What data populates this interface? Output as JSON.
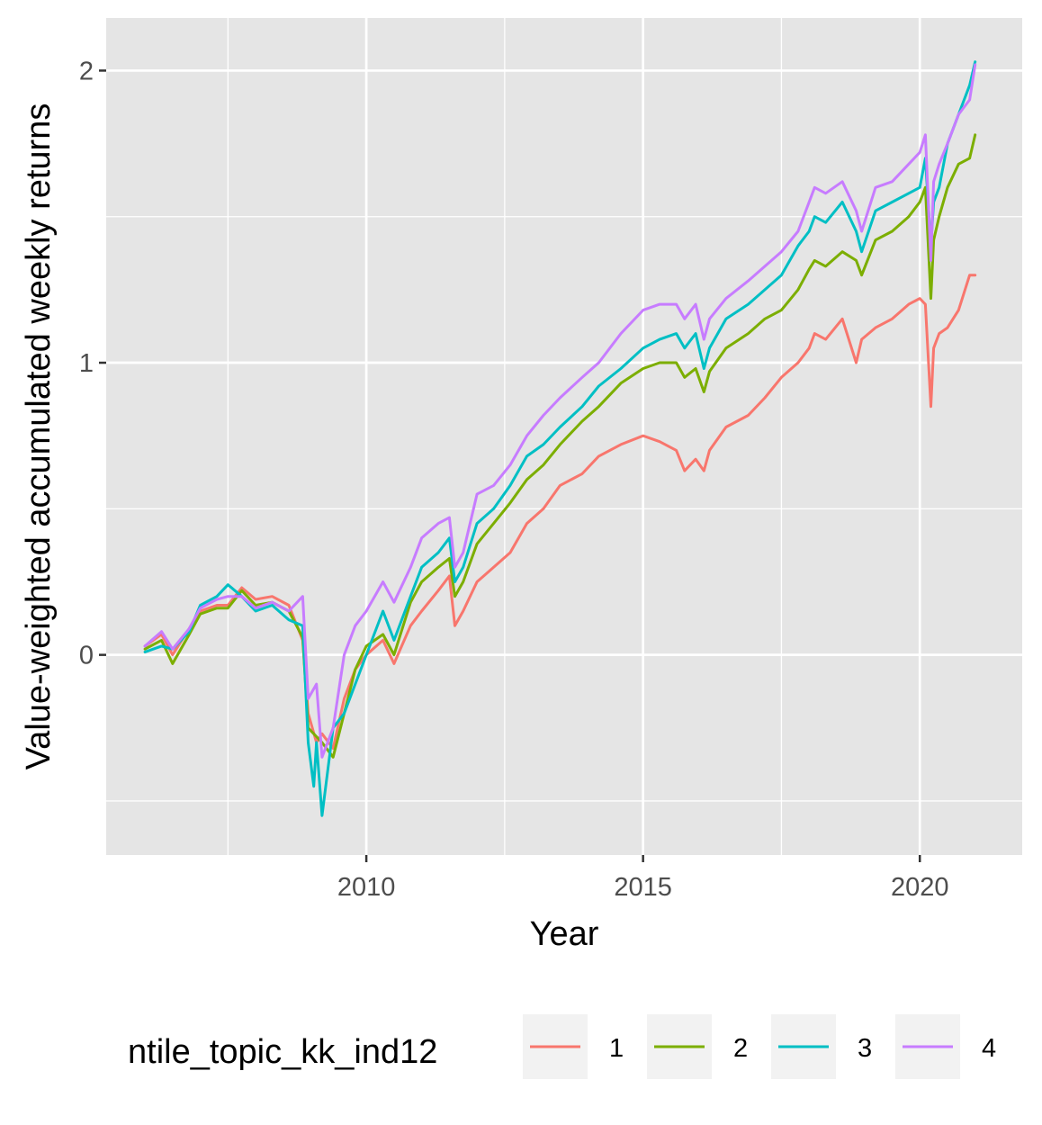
{
  "chart_data": {
    "type": "line",
    "title": "",
    "xlabel": "Year",
    "ylabel": "Value-weighted accumulated weekly returns",
    "xlim": [
      2005.3,
      2021.85
    ],
    "ylim": [
      -0.685,
      2.18
    ],
    "x_ticks": [
      2010,
      2015,
      2020
    ],
    "x_tick_labels": [
      "2010",
      "2015",
      "2020"
    ],
    "x_minor_ticks": [
      2007.5,
      2012.5,
      2017.5
    ],
    "y_ticks": [
      0,
      1,
      2
    ],
    "y_tick_labels": [
      "0",
      "1",
      "2"
    ],
    "y_minor_ticks": [
      -0.5,
      0.5,
      1.5
    ],
    "grid": true,
    "background": "#e5e5e5",
    "legend": {
      "title": "ntile_topic_kk_ind12",
      "position": "bottom",
      "entries": [
        "1",
        "2",
        "3",
        "4"
      ]
    },
    "series": [
      {
        "name": "1",
        "color": "#F8766D",
        "x": [
          2006.0,
          2006.3,
          2006.5,
          2006.8,
          2007.0,
          2007.3,
          2007.5,
          2007.75,
          2008.0,
          2008.3,
          2008.6,
          2008.85,
          2008.95,
          2009.1,
          2009.2,
          2009.4,
          2009.6,
          2009.8,
          2010.0,
          2010.3,
          2010.5,
          2010.8,
          2011.0,
          2011.3,
          2011.5,
          2011.6,
          2011.75,
          2012.0,
          2012.3,
          2012.6,
          2012.9,
          2013.2,
          2013.5,
          2013.9,
          2014.2,
          2014.6,
          2015.0,
          2015.3,
          2015.6,
          2015.75,
          2015.95,
          2016.1,
          2016.2,
          2016.5,
          2016.9,
          2017.2,
          2017.5,
          2017.8,
          2018.0,
          2018.1,
          2018.3,
          2018.6,
          2018.85,
          2018.95,
          2019.2,
          2019.5,
          2019.8,
          2020.0,
          2020.1,
          2020.2,
          2020.25,
          2020.35,
          2020.5,
          2020.7,
          2020.9,
          2021.0
        ],
        "values": [
          0.03,
          0.07,
          0.0,
          0.09,
          0.15,
          0.17,
          0.17,
          0.23,
          0.19,
          0.2,
          0.17,
          0.05,
          -0.2,
          -0.3,
          -0.27,
          -0.32,
          -0.15,
          -0.05,
          0.0,
          0.05,
          -0.03,
          0.1,
          0.15,
          0.22,
          0.27,
          0.1,
          0.15,
          0.25,
          0.3,
          0.35,
          0.45,
          0.5,
          0.58,
          0.62,
          0.68,
          0.72,
          0.75,
          0.73,
          0.7,
          0.63,
          0.67,
          0.63,
          0.7,
          0.78,
          0.82,
          0.88,
          0.95,
          1.0,
          1.05,
          1.1,
          1.08,
          1.15,
          1.0,
          1.08,
          1.12,
          1.15,
          1.2,
          1.22,
          1.2,
          0.85,
          1.05,
          1.1,
          1.12,
          1.18,
          1.3,
          1.3
        ]
      },
      {
        "name": "2",
        "color": "#7CAE00",
        "x": [
          2006.0,
          2006.3,
          2006.5,
          2006.8,
          2007.0,
          2007.3,
          2007.5,
          2007.75,
          2008.0,
          2008.3,
          2008.6,
          2008.85,
          2008.95,
          2009.1,
          2009.2,
          2009.4,
          2009.6,
          2009.8,
          2010.0,
          2010.3,
          2010.5,
          2010.8,
          2011.0,
          2011.3,
          2011.5,
          2011.6,
          2011.75,
          2012.0,
          2012.3,
          2012.6,
          2012.9,
          2013.2,
          2013.5,
          2013.9,
          2014.2,
          2014.6,
          2015.0,
          2015.3,
          2015.6,
          2015.75,
          2015.95,
          2016.1,
          2016.2,
          2016.5,
          2016.9,
          2017.2,
          2017.5,
          2017.8,
          2018.0,
          2018.1,
          2018.3,
          2018.6,
          2018.85,
          2018.95,
          2019.2,
          2019.5,
          2019.8,
          2020.0,
          2020.1,
          2020.2,
          2020.25,
          2020.35,
          2020.5,
          2020.7,
          2020.9,
          2021.0
        ],
        "values": [
          0.02,
          0.05,
          -0.03,
          0.07,
          0.14,
          0.16,
          0.16,
          0.22,
          0.17,
          0.18,
          0.15,
          0.06,
          -0.25,
          -0.28,
          -0.3,
          -0.35,
          -0.2,
          -0.05,
          0.03,
          0.07,
          0.0,
          0.18,
          0.25,
          0.3,
          0.33,
          0.2,
          0.25,
          0.38,
          0.45,
          0.52,
          0.6,
          0.65,
          0.72,
          0.8,
          0.85,
          0.93,
          0.98,
          1.0,
          1.0,
          0.95,
          0.98,
          0.9,
          0.97,
          1.05,
          1.1,
          1.15,
          1.18,
          1.25,
          1.32,
          1.35,
          1.33,
          1.38,
          1.35,
          1.3,
          1.42,
          1.45,
          1.5,
          1.55,
          1.6,
          1.22,
          1.42,
          1.5,
          1.6,
          1.68,
          1.7,
          1.78
        ]
      },
      {
        "name": "3",
        "color": "#00BFC4",
        "x": [
          2006.0,
          2006.3,
          2006.5,
          2006.8,
          2007.0,
          2007.3,
          2007.5,
          2007.75,
          2008.0,
          2008.3,
          2008.6,
          2008.85,
          2008.95,
          2009.05,
          2009.1,
          2009.2,
          2009.4,
          2009.6,
          2009.8,
          2010.0,
          2010.3,
          2010.5,
          2010.8,
          2011.0,
          2011.3,
          2011.5,
          2011.6,
          2011.75,
          2012.0,
          2012.3,
          2012.6,
          2012.9,
          2013.2,
          2013.5,
          2013.9,
          2014.2,
          2014.6,
          2015.0,
          2015.3,
          2015.6,
          2015.75,
          2015.95,
          2016.1,
          2016.2,
          2016.5,
          2016.9,
          2017.2,
          2017.5,
          2017.8,
          2018.0,
          2018.1,
          2018.3,
          2018.6,
          2018.85,
          2018.95,
          2019.2,
          2019.5,
          2019.8,
          2020.0,
          2020.1,
          2020.2,
          2020.25,
          2020.35,
          2020.5,
          2020.7,
          2020.9,
          2021.0
        ],
        "values": [
          0.01,
          0.03,
          0.02,
          0.08,
          0.17,
          0.2,
          0.24,
          0.2,
          0.15,
          0.17,
          0.12,
          0.1,
          -0.3,
          -0.45,
          -0.3,
          -0.55,
          -0.25,
          -0.2,
          -0.1,
          0.0,
          0.15,
          0.05,
          0.2,
          0.3,
          0.35,
          0.4,
          0.25,
          0.3,
          0.45,
          0.5,
          0.58,
          0.68,
          0.72,
          0.78,
          0.85,
          0.92,
          0.98,
          1.05,
          1.08,
          1.1,
          1.05,
          1.1,
          0.98,
          1.05,
          1.15,
          1.2,
          1.25,
          1.3,
          1.4,
          1.45,
          1.5,
          1.48,
          1.55,
          1.45,
          1.38,
          1.52,
          1.55,
          1.58,
          1.6,
          1.7,
          1.4,
          1.55,
          1.6,
          1.75,
          1.85,
          1.95,
          2.03
        ]
      },
      {
        "name": "4",
        "color": "#C77CFF",
        "x": [
          2006.0,
          2006.3,
          2006.5,
          2006.8,
          2007.0,
          2007.3,
          2007.5,
          2007.75,
          2008.0,
          2008.3,
          2008.6,
          2008.85,
          2008.95,
          2009.1,
          2009.2,
          2009.4,
          2009.6,
          2009.8,
          2010.0,
          2010.3,
          2010.5,
          2010.8,
          2011.0,
          2011.3,
          2011.5,
          2011.6,
          2011.75,
          2012.0,
          2012.3,
          2012.6,
          2012.9,
          2013.2,
          2013.5,
          2013.9,
          2014.2,
          2014.6,
          2015.0,
          2015.3,
          2015.6,
          2015.75,
          2015.95,
          2016.1,
          2016.2,
          2016.5,
          2016.9,
          2017.2,
          2017.5,
          2017.8,
          2018.0,
          2018.1,
          2018.3,
          2018.6,
          2018.85,
          2018.95,
          2019.2,
          2019.5,
          2019.8,
          2020.0,
          2020.1,
          2020.2,
          2020.25,
          2020.35,
          2020.5,
          2020.7,
          2020.9,
          2021.0
        ],
        "values": [
          0.03,
          0.08,
          0.02,
          0.09,
          0.16,
          0.19,
          0.2,
          0.2,
          0.16,
          0.18,
          0.15,
          0.2,
          -0.15,
          -0.1,
          -0.35,
          -0.25,
          0.0,
          0.1,
          0.15,
          0.25,
          0.18,
          0.3,
          0.4,
          0.45,
          0.47,
          0.3,
          0.35,
          0.55,
          0.58,
          0.65,
          0.75,
          0.82,
          0.88,
          0.95,
          1.0,
          1.1,
          1.18,
          1.2,
          1.2,
          1.15,
          1.2,
          1.08,
          1.15,
          1.22,
          1.28,
          1.33,
          1.38,
          1.45,
          1.55,
          1.6,
          1.58,
          1.62,
          1.52,
          1.45,
          1.6,
          1.62,
          1.68,
          1.72,
          1.78,
          1.35,
          1.62,
          1.68,
          1.75,
          1.85,
          1.9,
          2.02
        ]
      }
    ]
  }
}
